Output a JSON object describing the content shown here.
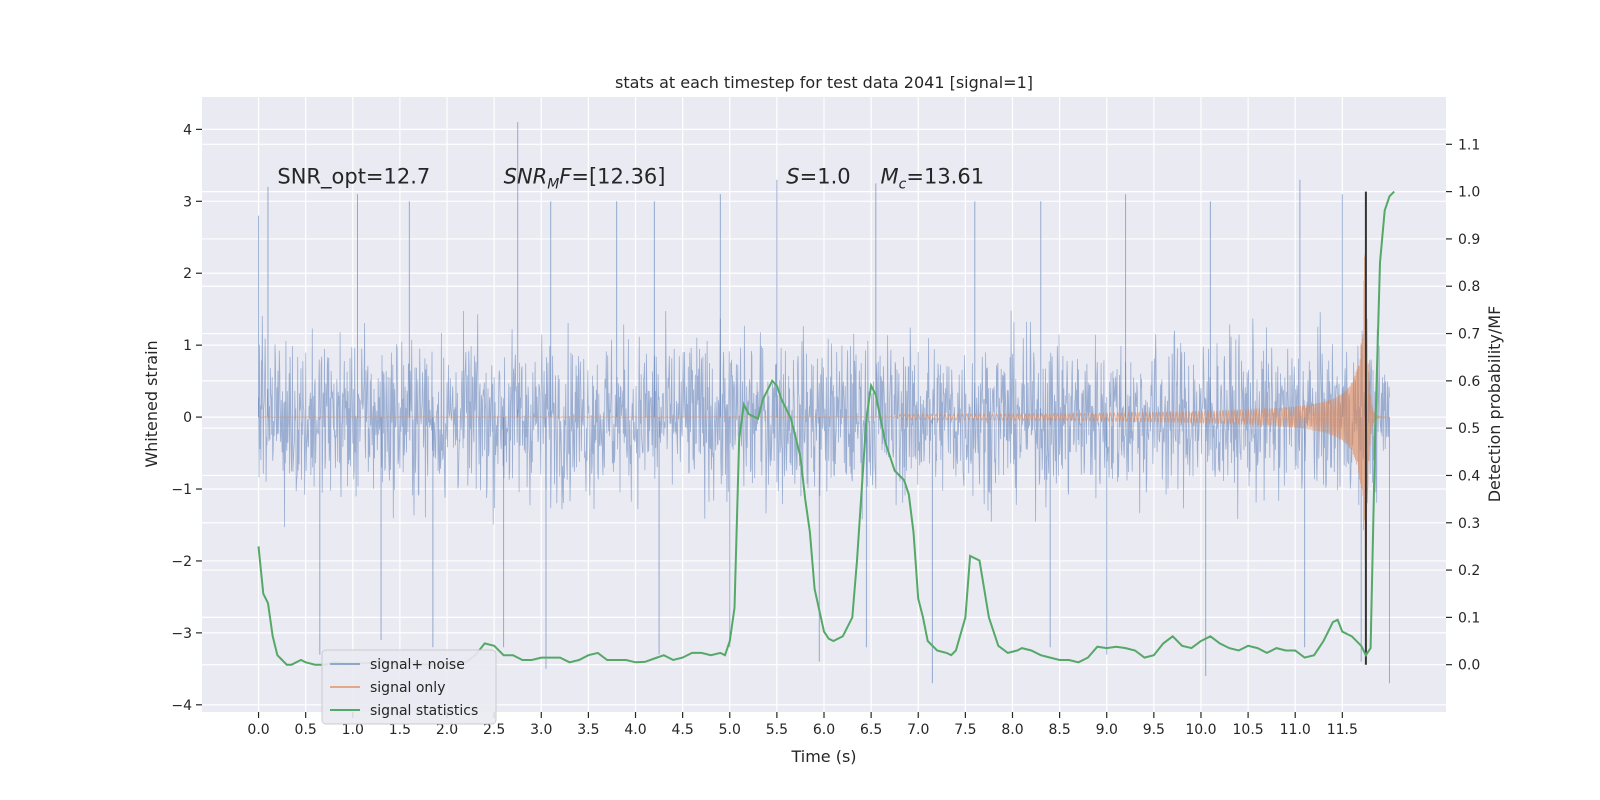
{
  "chart_data": {
    "type": "line",
    "title": "stats at each timestep for test data 2041 [signal=1]",
    "xlabel": "Time (s)",
    "ylabel": "Whitened strain",
    "y2label": "Detection probability/MF",
    "xlim": [
      -0.6,
      12.6
    ],
    "ylim": [
      -4.1,
      4.45
    ],
    "y2lim": [
      -0.1,
      1.2
    ],
    "xticks": [
      "0.0",
      "0.5",
      "1.0",
      "1.5",
      "2.0",
      "2.5",
      "3.0",
      "3.5",
      "4.0",
      "4.5",
      "5.0",
      "5.5",
      "6.0",
      "6.5",
      "7.0",
      "7.5",
      "8.0",
      "8.5",
      "9.0",
      "9.5",
      "10.0",
      "10.5",
      "11.0",
      "11.5"
    ],
    "yticks": [
      "4",
      "3",
      "2",
      "1",
      "0",
      "−1",
      "−2",
      "−3",
      "−4"
    ],
    "y2ticks": [
      "1.1",
      "1.0",
      "0.9",
      "0.8",
      "0.7",
      "0.6",
      "0.5",
      "0.4",
      "0.3",
      "0.2",
      "0.1",
      "0.0"
    ],
    "grid": true,
    "legend_position": "lower-left",
    "annotations": [
      {
        "text": "SNR_opt=12.7",
        "x": 0.2,
        "y": 3.25
      },
      {
        "text": "SNR_MF=[12.36]",
        "x": 2.6,
        "y": 3.25
      },
      {
        "text": "S=1.0",
        "x": 5.6,
        "y": 3.25
      },
      {
        "text": "M_c=13.61",
        "x": 6.6,
        "y": 3.25
      }
    ],
    "event_marker_x": 11.75,
    "series": [
      {
        "name": "signal+ noise",
        "color": "#4c72b0",
        "x_range": [
          0.0,
          12.0
        ],
        "envelope_upper": 2.3,
        "envelope_lower": -2.3,
        "extreme_points": [
          [
            0.0,
            2.8
          ],
          [
            0.1,
            3.2
          ],
          [
            1.05,
            3.1
          ],
          [
            1.6,
            3.0
          ],
          [
            2.75,
            4.1
          ],
          [
            3.1,
            3.0
          ],
          [
            3.8,
            3.0
          ],
          [
            4.2,
            3.0
          ],
          [
            4.9,
            3.1
          ],
          [
            5.5,
            3.3
          ],
          [
            6.55,
            3.25
          ],
          [
            7.6,
            3.0
          ],
          [
            8.3,
            3.0
          ],
          [
            9.2,
            3.1
          ],
          [
            10.1,
            3.0
          ],
          [
            11.05,
            3.3
          ],
          [
            11.5,
            3.1
          ],
          [
            0.65,
            -3.3
          ],
          [
            1.3,
            -3.1
          ],
          [
            1.85,
            -3.2
          ],
          [
            2.6,
            -3.2
          ],
          [
            3.05,
            -3.5
          ],
          [
            4.25,
            -3.3
          ],
          [
            5.0,
            -3.2
          ],
          [
            5.95,
            -3.4
          ],
          [
            6.45,
            -3.2
          ],
          [
            7.15,
            -3.7
          ],
          [
            8.4,
            -3.2
          ],
          [
            9.0,
            -3.3
          ],
          [
            10.05,
            -3.6
          ],
          [
            11.1,
            -3.2
          ],
          [
            11.7,
            -3.4
          ],
          [
            12.0,
            -3.7
          ]
        ]
      },
      {
        "name": "signal only",
        "color": "#dd8452",
        "x_range": [
          0.0,
          12.0
        ],
        "merger_time": 11.75,
        "peak_amplitude": 2.3,
        "amplitude_at_start": 0.004
      },
      {
        "name": "signal statistics",
        "color": "#55a868",
        "points": [
          [
            0.0,
            0.25
          ],
          [
            0.05,
            0.15
          ],
          [
            0.1,
            0.13
          ],
          [
            0.15,
            0.06
          ],
          [
            0.2,
            0.02
          ],
          [
            0.25,
            0.01
          ],
          [
            0.3,
            0.0
          ],
          [
            0.35,
            0.0
          ],
          [
            0.4,
            0.005
          ],
          [
            0.45,
            0.01
          ],
          [
            0.5,
            0.005
          ],
          [
            0.6,
            0.0
          ],
          [
            0.7,
            0.0
          ],
          [
            0.8,
            0.005
          ],
          [
            0.9,
            0.003
          ],
          [
            1.0,
            0.002
          ],
          [
            1.2,
            0.004
          ],
          [
            1.3,
            0.01
          ],
          [
            1.4,
            0.003
          ],
          [
            1.5,
            0.001
          ],
          [
            1.6,
            0.006
          ],
          [
            1.7,
            0.002
          ],
          [
            1.8,
            0.0
          ],
          [
            1.9,
            0.0
          ],
          [
            2.0,
            0.002
          ],
          [
            2.2,
            0.005
          ],
          [
            2.3,
            0.02
          ],
          [
            2.4,
            0.045
          ],
          [
            2.5,
            0.04
          ],
          [
            2.6,
            0.02
          ],
          [
            2.7,
            0.02
          ],
          [
            2.8,
            0.01
          ],
          [
            2.9,
            0.01
          ],
          [
            3.0,
            0.015
          ],
          [
            3.1,
            0.015
          ],
          [
            3.2,
            0.015
          ],
          [
            3.3,
            0.005
          ],
          [
            3.4,
            0.01
          ],
          [
            3.5,
            0.02
          ],
          [
            3.6,
            0.025
          ],
          [
            3.7,
            0.01
          ],
          [
            3.8,
            0.01
          ],
          [
            3.9,
            0.01
          ],
          [
            4.0,
            0.005
          ],
          [
            4.1,
            0.006
          ],
          [
            4.2,
            0.013
          ],
          [
            4.3,
            0.02
          ],
          [
            4.4,
            0.01
          ],
          [
            4.5,
            0.015
          ],
          [
            4.6,
            0.025
          ],
          [
            4.7,
            0.025
          ],
          [
            4.8,
            0.02
          ],
          [
            4.9,
            0.025
          ],
          [
            4.95,
            0.02
          ],
          [
            5.0,
            0.05
          ],
          [
            5.05,
            0.12
          ],
          [
            5.1,
            0.48
          ],
          [
            5.15,
            0.55
          ],
          [
            5.2,
            0.53
          ],
          [
            5.3,
            0.52
          ],
          [
            5.35,
            0.56
          ],
          [
            5.45,
            0.6
          ],
          [
            5.5,
            0.59
          ],
          [
            5.55,
            0.56
          ],
          [
            5.65,
            0.52
          ],
          [
            5.75,
            0.44
          ],
          [
            5.8,
            0.35
          ],
          [
            5.85,
            0.28
          ],
          [
            5.9,
            0.16
          ],
          [
            6.0,
            0.07
          ],
          [
            6.05,
            0.055
          ],
          [
            6.1,
            0.05
          ],
          [
            6.2,
            0.06
          ],
          [
            6.3,
            0.1
          ],
          [
            6.35,
            0.22
          ],
          [
            6.45,
            0.52
          ],
          [
            6.5,
            0.59
          ],
          [
            6.55,
            0.57
          ],
          [
            6.65,
            0.47
          ],
          [
            6.75,
            0.41
          ],
          [
            6.8,
            0.4
          ],
          [
            6.85,
            0.39
          ],
          [
            6.9,
            0.36
          ],
          [
            6.95,
            0.28
          ],
          [
            7.0,
            0.14
          ],
          [
            7.05,
            0.1
          ],
          [
            7.1,
            0.05
          ],
          [
            7.2,
            0.03
          ],
          [
            7.3,
            0.025
          ],
          [
            7.35,
            0.02
          ],
          [
            7.4,
            0.03
          ],
          [
            7.5,
            0.1
          ],
          [
            7.55,
            0.23
          ],
          [
            7.65,
            0.22
          ],
          [
            7.7,
            0.16
          ],
          [
            7.75,
            0.1
          ],
          [
            7.85,
            0.04
          ],
          [
            7.95,
            0.025
          ],
          [
            8.05,
            0.03
          ],
          [
            8.1,
            0.035
          ],
          [
            8.2,
            0.03
          ],
          [
            8.3,
            0.02
          ],
          [
            8.4,
            0.015
          ],
          [
            8.5,
            0.01
          ],
          [
            8.6,
            0.01
          ],
          [
            8.7,
            0.005
          ],
          [
            8.8,
            0.015
          ],
          [
            8.9,
            0.038
          ],
          [
            9.0,
            0.035
          ],
          [
            9.1,
            0.038
          ],
          [
            9.2,
            0.035
          ],
          [
            9.3,
            0.03
          ],
          [
            9.4,
            0.015
          ],
          [
            9.5,
            0.02
          ],
          [
            9.6,
            0.045
          ],
          [
            9.7,
            0.06
          ],
          [
            9.8,
            0.04
          ],
          [
            9.9,
            0.035
          ],
          [
            10.0,
            0.05
          ],
          [
            10.1,
            0.06
          ],
          [
            10.2,
            0.045
          ],
          [
            10.3,
            0.035
          ],
          [
            10.4,
            0.03
          ],
          [
            10.5,
            0.04
          ],
          [
            10.6,
            0.035
          ],
          [
            10.7,
            0.025
          ],
          [
            10.8,
            0.035
          ],
          [
            10.9,
            0.03
          ],
          [
            11.0,
            0.03
          ],
          [
            11.1,
            0.015
          ],
          [
            11.2,
            0.02
          ],
          [
            11.3,
            0.05
          ],
          [
            11.4,
            0.09
          ],
          [
            11.45,
            0.095
          ],
          [
            11.5,
            0.07
          ],
          [
            11.6,
            0.06
          ],
          [
            11.7,
            0.04
          ],
          [
            11.75,
            0.02
          ],
          [
            11.8,
            0.035
          ],
          [
            11.85,
            0.5
          ],
          [
            11.9,
            0.85
          ],
          [
            11.95,
            0.96
          ],
          [
            12.0,
            0.99
          ],
          [
            12.05,
            1.0
          ]
        ]
      }
    ]
  }
}
